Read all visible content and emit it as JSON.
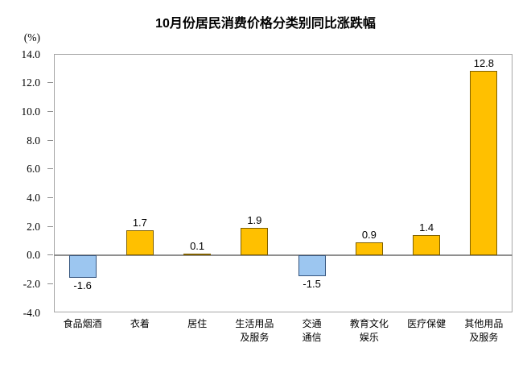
{
  "chart_data": {
    "type": "bar",
    "title": "10月份居民消费价格分类别同比涨跌幅",
    "ylabel": "(%)",
    "xlabel": "",
    "categories": [
      "食品烟酒",
      "衣着",
      "居住",
      "生活用品\n及服务",
      "交通\n通信",
      "教育文化\n娱乐",
      "医疗保健",
      "其他用品\n及服务"
    ],
    "values": [
      -1.6,
      1.7,
      0.1,
      1.9,
      -1.5,
      0.9,
      1.4,
      12.8
    ],
    "ylim": [
      -4.0,
      14.0
    ],
    "ytick_step": 2.0,
    "grid": false,
    "legend": "none",
    "value_labels_shown": true,
    "colors": {
      "positive_fill": "#FFC000",
      "positive_border": "#7F6000",
      "negative_fill": "#9CC6F0",
      "negative_border": "#35557E",
      "axis_line": "#8f8f8f",
      "plot_border": "#a6a6a6",
      "text": "#000000"
    }
  }
}
